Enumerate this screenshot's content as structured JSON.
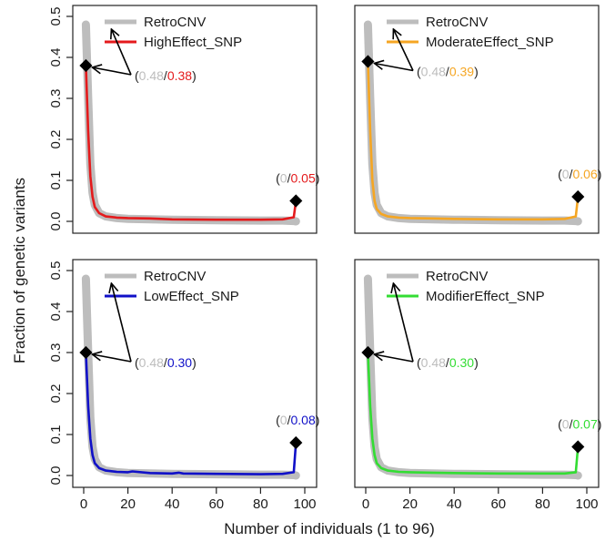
{
  "figure": {
    "ylabel": "Fraction of genetic variants",
    "xlabel": "Number of individuals (1 to 96)"
  },
  "chart_data": [
    {
      "type": "line",
      "xlim": [
        0,
        100
      ],
      "ylim": [
        0,
        0.5
      ],
      "x_ticks": [
        0,
        20,
        40,
        60,
        80,
        100
      ],
      "y_ticks": [
        0.0,
        0.1,
        0.2,
        0.3,
        0.4,
        0.5
      ],
      "show_x_ticks": false,
      "show_y_ticks": true,
      "legend_position": "top-left",
      "series": [
        {
          "name": "RetroCNV",
          "color": "#bdbdbd",
          "x": [
            1,
            2,
            3,
            4,
            5,
            7,
            10,
            15,
            20,
            30,
            40,
            60,
            80,
            90,
            95,
            96
          ],
          "y": [
            0.48,
            0.3,
            0.14,
            0.07,
            0.04,
            0.02,
            0.012,
            0.008,
            0.006,
            0.005,
            0.004,
            0.003,
            0.002,
            0.002,
            0.001,
            0.0
          ]
        },
        {
          "name": "HighEffect_SNP",
          "color": "#e41a1c",
          "x": [
            1,
            2,
            3,
            4,
            5,
            7,
            10,
            15,
            20,
            30,
            40,
            60,
            80,
            90,
            95,
            96
          ],
          "y": [
            0.38,
            0.22,
            0.11,
            0.06,
            0.035,
            0.02,
            0.012,
            0.009,
            0.008,
            0.007,
            0.005,
            0.004,
            0.004,
            0.005,
            0.01,
            0.05
          ]
        }
      ],
      "annotations": [
        {
          "x": 1,
          "y": 0.38,
          "ref_value": "0.48",
          "value": "0.38"
        },
        {
          "x": 96,
          "y": 0.05,
          "ref_value": "0",
          "value": "0.05"
        }
      ]
    },
    {
      "type": "line",
      "xlim": [
        0,
        100
      ],
      "ylim": [
        0,
        0.5
      ],
      "x_ticks": [
        0,
        20,
        40,
        60,
        80,
        100
      ],
      "y_ticks": [
        0.0,
        0.1,
        0.2,
        0.3,
        0.4,
        0.5
      ],
      "show_x_ticks": false,
      "show_y_ticks": false,
      "legend_position": "top-left",
      "series": [
        {
          "name": "RetroCNV",
          "color": "#bdbdbd",
          "x": [
            1,
            2,
            3,
            4,
            5,
            7,
            10,
            15,
            20,
            30,
            40,
            60,
            80,
            90,
            95,
            96
          ],
          "y": [
            0.48,
            0.3,
            0.14,
            0.07,
            0.04,
            0.02,
            0.012,
            0.008,
            0.006,
            0.005,
            0.004,
            0.003,
            0.002,
            0.002,
            0.001,
            0.0
          ]
        },
        {
          "name": "ModerateEffect_SNP",
          "color": "#f5a623",
          "x": [
            1,
            2,
            3,
            4,
            5,
            7,
            10,
            15,
            20,
            30,
            40,
            60,
            80,
            90,
            95,
            96
          ],
          "y": [
            0.39,
            0.22,
            0.1,
            0.05,
            0.03,
            0.018,
            0.012,
            0.009,
            0.008,
            0.007,
            0.006,
            0.005,
            0.005,
            0.006,
            0.012,
            0.06
          ]
        }
      ],
      "annotations": [
        {
          "x": 1,
          "y": 0.39,
          "ref_value": "0.48",
          "value": "0.39"
        },
        {
          "x": 96,
          "y": 0.06,
          "ref_value": "0",
          "value": "0.06"
        }
      ]
    },
    {
      "type": "line",
      "xlim": [
        0,
        100
      ],
      "ylim": [
        0,
        0.5
      ],
      "x_ticks": [
        0,
        20,
        40,
        60,
        80,
        100
      ],
      "y_ticks": [
        0.0,
        0.1,
        0.2,
        0.3,
        0.4,
        0.5
      ],
      "show_x_ticks": true,
      "show_y_ticks": true,
      "legend_position": "top-left",
      "series": [
        {
          "name": "RetroCNV",
          "color": "#bdbdbd",
          "x": [
            1,
            2,
            3,
            4,
            5,
            7,
            10,
            15,
            20,
            30,
            40,
            60,
            80,
            90,
            95,
            96
          ],
          "y": [
            0.48,
            0.3,
            0.14,
            0.07,
            0.04,
            0.02,
            0.012,
            0.008,
            0.006,
            0.005,
            0.004,
            0.003,
            0.002,
            0.002,
            0.001,
            0.0
          ]
        },
        {
          "name": "LowEffect_SNP",
          "color": "#1010c8",
          "x": [
            1,
            2,
            3,
            4,
            5,
            7,
            10,
            15,
            20,
            22,
            30,
            40,
            43,
            45,
            60,
            80,
            90,
            95,
            96
          ],
          "y": [
            0.3,
            0.17,
            0.09,
            0.05,
            0.03,
            0.018,
            0.012,
            0.009,
            0.008,
            0.01,
            0.006,
            0.005,
            0.007,
            0.005,
            0.004,
            0.003,
            0.004,
            0.008,
            0.08
          ]
        }
      ],
      "annotations": [
        {
          "x": 1,
          "y": 0.3,
          "ref_value": "0.48",
          "value": "0.30"
        },
        {
          "x": 96,
          "y": 0.08,
          "ref_value": "0",
          "value": "0.08"
        }
      ]
    },
    {
      "type": "line",
      "xlim": [
        0,
        100
      ],
      "ylim": [
        0,
        0.5
      ],
      "x_ticks": [
        0,
        20,
        40,
        60,
        80,
        100
      ],
      "y_ticks": [
        0.0,
        0.1,
        0.2,
        0.3,
        0.4,
        0.5
      ],
      "show_x_ticks": true,
      "show_y_ticks": false,
      "legend_position": "top-left",
      "series": [
        {
          "name": "RetroCNV",
          "color": "#bdbdbd",
          "x": [
            1,
            2,
            3,
            4,
            5,
            7,
            10,
            15,
            20,
            30,
            40,
            60,
            80,
            90,
            95,
            96
          ],
          "y": [
            0.48,
            0.3,
            0.14,
            0.07,
            0.04,
            0.02,
            0.012,
            0.008,
            0.006,
            0.005,
            0.004,
            0.003,
            0.002,
            0.002,
            0.001,
            0.0
          ]
        },
        {
          "name": "ModifierEffect_SNP",
          "color": "#33dd33",
          "x": [
            1,
            2,
            3,
            4,
            5,
            7,
            10,
            15,
            20,
            30,
            40,
            60,
            80,
            90,
            95,
            96
          ],
          "y": [
            0.3,
            0.17,
            0.09,
            0.05,
            0.03,
            0.018,
            0.012,
            0.009,
            0.008,
            0.007,
            0.006,
            0.005,
            0.005,
            0.005,
            0.008,
            0.07
          ]
        }
      ],
      "annotations": [
        {
          "x": 1,
          "y": 0.3,
          "ref_value": "0.48",
          "value": "0.30"
        },
        {
          "x": 96,
          "y": 0.07,
          "ref_value": "0",
          "value": "0.07"
        }
      ]
    }
  ]
}
